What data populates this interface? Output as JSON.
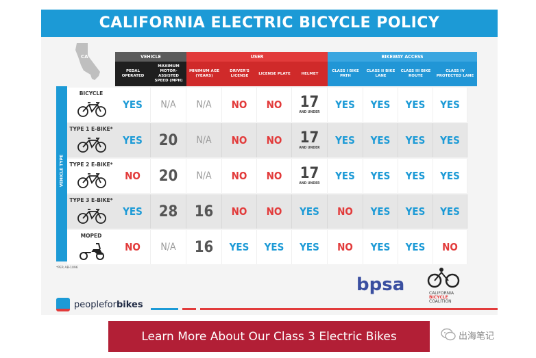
{
  "title": "CALIFORNIA ELECTRIC BICYCLE POLICY",
  "map_label": "CA",
  "groups": {
    "vehicle": "VEHICLE",
    "user": "USER",
    "bikeway": "BIKEWAY ACCESS"
  },
  "columns": [
    "PEDAL OPERATED",
    "MAXIMUM MOTOR-ASSISTED SPEED (MPH)",
    "MINIMUM AGE (YEARS)",
    "DRIVER'S LICENSE",
    "LICENSE PLATE",
    "HELMET",
    "CLASS I BIKE PATH",
    "CLASS II BIKE LANE",
    "CLASS III BIKE ROUTE",
    "CLASS IV PROTECTED LANE"
  ],
  "vehicle_type_label": "VEHICLE TYPE",
  "age_sub": "AND UNDER",
  "rows": [
    {
      "name": "BICYCLE",
      "values": [
        "YES",
        "N/A",
        "N/A",
        "NO",
        "NO",
        "17",
        "YES",
        "YES",
        "YES",
        "YES"
      ]
    },
    {
      "name": "TYPE 1 E-BIKE*",
      "values": [
        "YES",
        "20",
        "N/A",
        "NO",
        "NO",
        "17",
        "YES",
        "YES",
        "YES",
        "YES"
      ]
    },
    {
      "name": "TYPE 2 E-BIKE*",
      "values": [
        "NO",
        "20",
        "N/A",
        "NO",
        "NO",
        "17",
        "YES",
        "YES",
        "YES",
        "YES"
      ]
    },
    {
      "name": "TYPE 3 E-BIKE*",
      "values": [
        "YES",
        "28",
        "16",
        "NO",
        "NO",
        "YES",
        "NO",
        "YES",
        "YES",
        "YES"
      ]
    },
    {
      "name": "MOPED",
      "values": [
        "NO",
        "N/A",
        "16",
        "YES",
        "YES",
        "YES",
        "NO",
        "YES",
        "YES",
        "NO"
      ]
    }
  ],
  "footnote": "*PER AB-1096",
  "logos": {
    "peopleforbikes_a": "peoplefor",
    "peopleforbikes_b": "bikes",
    "bpsa": "bpsa",
    "cbc_line1": "CALIFORNIA",
    "cbc_line2": "BICYCLE",
    "cbc_line3": "COALITION"
  },
  "cta_label": "Learn More About Our Class 3 Electric Bikes",
  "watermark": "出海笔记",
  "colors": {
    "blue": "#1c9ad6",
    "red": "#e23b3b",
    "dark": "#1f1f1f",
    "cta": "#b21f36"
  }
}
